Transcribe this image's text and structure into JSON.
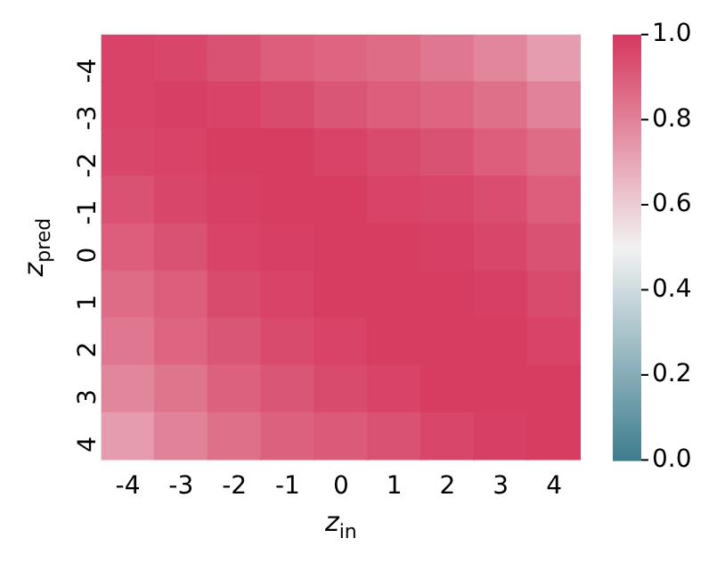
{
  "chart_data": {
    "type": "heatmap",
    "xlabel": "z$_{in}$",
    "ylabel": "z$_{pred}$",
    "categories": [
      "-4",
      "-3",
      "-2",
      "-1",
      "0",
      "1",
      "2",
      "3",
      "4"
    ],
    "y_categories": [
      "-4",
      "-3",
      "-2",
      "-1",
      "0",
      "1",
      "2",
      "3",
      "4"
    ],
    "cells": [
      [
        0.97,
        0.96,
        0.93,
        0.9,
        0.88,
        0.86,
        0.83,
        0.79,
        0.73
      ],
      [
        0.97,
        0.98,
        0.97,
        0.95,
        0.92,
        0.9,
        0.88,
        0.85,
        0.8
      ],
      [
        0.96,
        0.97,
        0.99,
        0.99,
        0.97,
        0.95,
        0.93,
        0.9,
        0.86
      ],
      [
        0.93,
        0.96,
        0.98,
        0.99,
        0.99,
        0.97,
        0.96,
        0.94,
        0.9
      ],
      [
        0.9,
        0.93,
        0.97,
        0.98,
        0.99,
        0.99,
        0.98,
        0.96,
        0.93
      ],
      [
        0.86,
        0.9,
        0.95,
        0.97,
        0.99,
        0.99,
        0.99,
        0.98,
        0.95
      ],
      [
        0.83,
        0.88,
        0.92,
        0.95,
        0.97,
        0.99,
        0.99,
        0.99,
        0.97
      ],
      [
        0.79,
        0.84,
        0.89,
        0.92,
        0.95,
        0.97,
        0.99,
        0.99,
        0.99
      ],
      [
        0.73,
        0.8,
        0.85,
        0.89,
        0.91,
        0.93,
        0.96,
        0.98,
        0.99
      ]
    ],
    "clim": [
      0,
      1
    ],
    "cticks": [
      {
        "value": 0,
        "label": "0.0"
      },
      {
        "value": 0.2,
        "label": "0.2"
      },
      {
        "value": 0.4,
        "label": "0.4"
      },
      {
        "value": 0.6,
        "label": "0.6"
      },
      {
        "value": 0.8,
        "label": "0.8"
      },
      {
        "value": 1,
        "label": "1.0"
      }
    ]
  }
}
